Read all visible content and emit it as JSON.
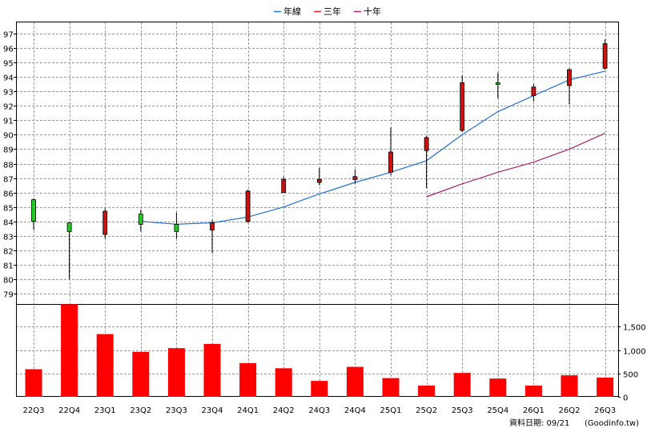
{
  "chart_data": [
    {
      "type": "candlestick",
      "legend": [
        {
          "name": "年線",
          "color": "#1f6fd6"
        },
        {
          "name": "三年",
          "color": "#d02020"
        },
        {
          "name": "十年",
          "color": "#b0206a"
        }
      ],
      "categories": [
        "22Q3",
        "22Q4",
        "23Q1",
        "23Q2",
        "23Q3",
        "23Q4",
        "24Q1",
        "24Q2",
        "24Q3",
        "24Q4",
        "25Q1",
        "25Q2",
        "25Q3",
        "25Q4",
        "26Q1",
        "26Q2",
        "26Q3"
      ],
      "ylim": [
        79,
        97
      ],
      "yticks": [
        79,
        80,
        81,
        82,
        83,
        84,
        85,
        86,
        87,
        88,
        89,
        90,
        91,
        92,
        93,
        94,
        95,
        96,
        97
      ],
      "candles": [
        {
          "open": 84.0,
          "high": 85.6,
          "low": 83.4,
          "close": 85.5,
          "color": "green"
        },
        {
          "open": 83.9,
          "high": 83.9,
          "low": 80.0,
          "close": 83.3,
          "color": "green"
        },
        {
          "open": 84.7,
          "high": 84.9,
          "low": 82.8,
          "close": 83.1,
          "color": "red"
        },
        {
          "open": 84.5,
          "high": 84.8,
          "low": 83.3,
          "close": 83.8,
          "color": "green"
        },
        {
          "open": 83.8,
          "high": 84.6,
          "low": 82.8,
          "close": 83.3,
          "color": "green"
        },
        {
          "open": 83.9,
          "high": 84.1,
          "low": 81.8,
          "close": 83.4,
          "color": "red"
        },
        {
          "open": 86.1,
          "high": 86.2,
          "low": 83.9,
          "close": 84.0,
          "color": "red"
        },
        {
          "open": 86.9,
          "high": 87.1,
          "low": 86.0,
          "close": 86.0,
          "color": "red"
        },
        {
          "open": 86.9,
          "high": 87.7,
          "low": 86.5,
          "close": 86.7,
          "color": "red"
        },
        {
          "open": 87.1,
          "high": 87.6,
          "low": 86.6,
          "close": 86.9,
          "color": "red"
        },
        {
          "open": 88.8,
          "high": 90.5,
          "low": 87.2,
          "close": 87.4,
          "color": "red"
        },
        {
          "open": 89.8,
          "high": 89.9,
          "low": 86.3,
          "close": 88.9,
          "color": "red"
        },
        {
          "open": 93.6,
          "high": 94.1,
          "low": 90.2,
          "close": 90.3,
          "color": "red"
        },
        {
          "open": 93.5,
          "high": 94.3,
          "low": 92.5,
          "close": 93.6,
          "color": "green"
        },
        {
          "open": 93.3,
          "high": 93.5,
          "low": 92.3,
          "close": 92.7,
          "color": "red"
        },
        {
          "open": 94.5,
          "high": 94.6,
          "low": 92.1,
          "close": 93.4,
          "color": "red"
        },
        {
          "open": 96.3,
          "high": 96.6,
          "low": 94.5,
          "close": 94.6,
          "color": "red"
        }
      ],
      "lines": [
        {
          "name": "年線",
          "color": "#1f6fd6",
          "values": [
            null,
            null,
            null,
            84.0,
            83.8,
            83.9,
            84.3,
            85.0,
            85.9,
            86.7,
            87.4,
            88.2,
            90.0,
            91.6,
            92.7,
            93.8,
            94.4
          ]
        },
        {
          "name": "十年",
          "color": "#b0206a",
          "values": [
            null,
            null,
            null,
            null,
            null,
            null,
            null,
            null,
            null,
            null,
            null,
            85.7,
            86.6,
            87.4,
            88.1,
            89.0,
            90.1
          ]
        }
      ]
    },
    {
      "type": "bar",
      "categories": [
        "22Q3",
        "22Q4",
        "23Q1",
        "23Q2",
        "23Q3",
        "23Q4",
        "24Q1",
        "24Q2",
        "24Q3",
        "24Q4",
        "25Q1",
        "25Q2",
        "25Q3",
        "25Q4",
        "26Q1",
        "26Q2",
        "26Q3"
      ],
      "values": [
        590,
        1980,
        1340,
        960,
        1040,
        1130,
        720,
        610,
        340,
        640,
        400,
        240,
        510,
        390,
        240,
        460,
        410
      ],
      "ylim": [
        0,
        2000
      ],
      "yticks": [
        0,
        500,
        1000,
        1500
      ],
      "ytick_labels": [
        "0",
        "500",
        "1,000",
        "1,500"
      ],
      "color": "#ff0000"
    }
  ],
  "footer": {
    "date_label": "資料日期: 09/21",
    "source": "(Goodinfo.tw)"
  }
}
